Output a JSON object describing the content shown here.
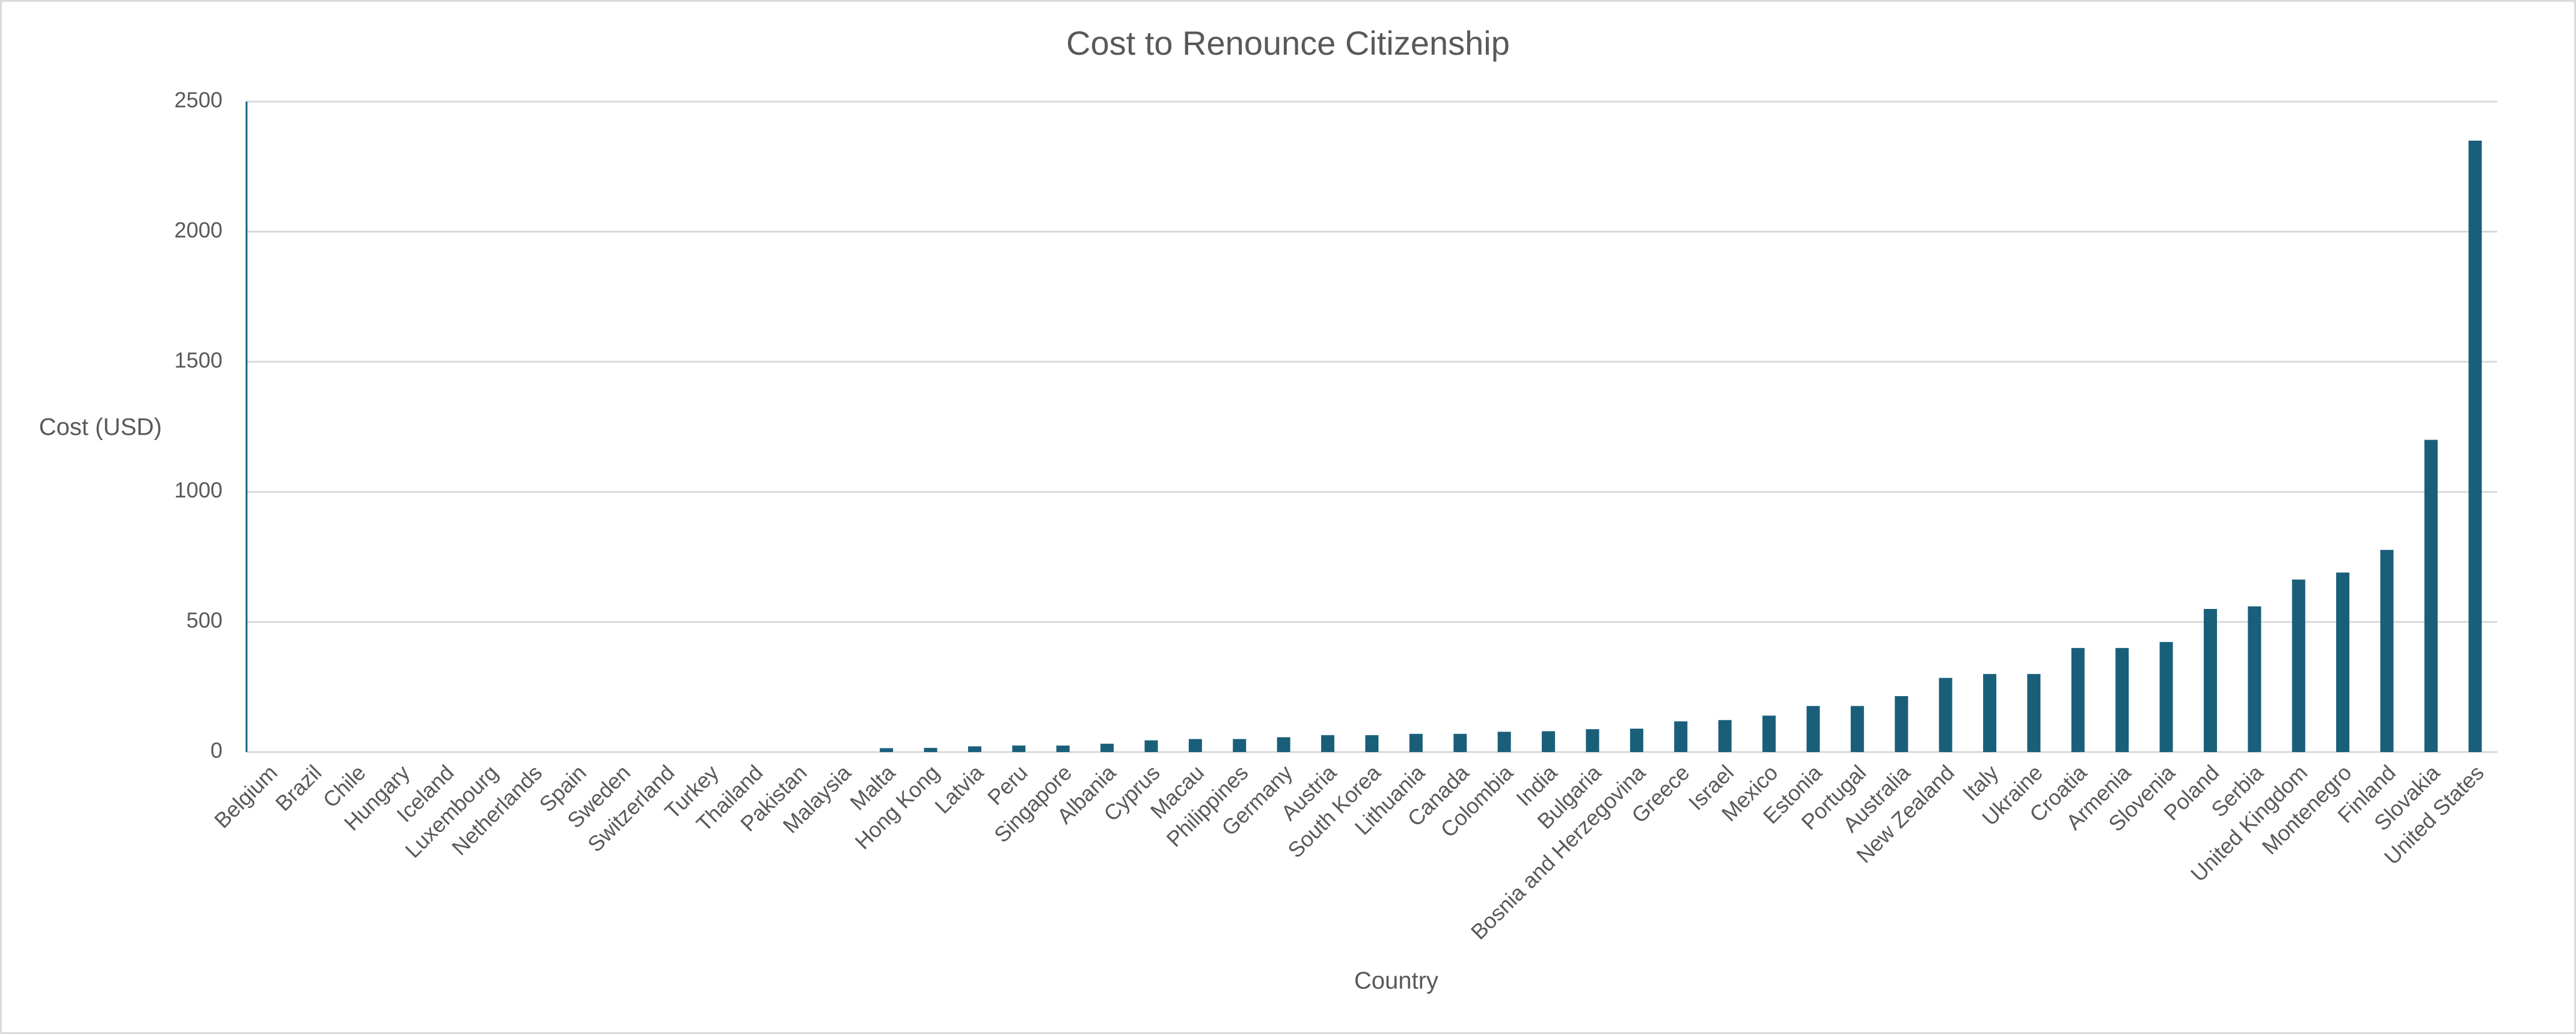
{
  "chart_data": {
    "type": "bar",
    "title": "Cost to Renounce Citizenship",
    "x_label": "Country",
    "y_label": "Cost (USD)",
    "categories": [
      "Belgium",
      "Brazil",
      "Chile",
      "Hungary",
      "Iceland",
      "Luxembourg",
      "Netherlands",
      "Spain",
      "Sweden",
      "Switzerland",
      "Turkey",
      "Thailand",
      "Pakistan",
      "Malaysia",
      "Malta",
      "Hong Kong",
      "Latvia",
      "Peru",
      "Singapore",
      "Albania",
      "Cyprus",
      "Macau",
      "Philippines",
      "Germany",
      "Austria",
      "South Korea",
      "Lithuania",
      "Canada",
      "Colombia",
      "India",
      "Bulgaria",
      "Bosnia and Herzegovina",
      "Greece",
      "Israel",
      "Mexico",
      "Estonia",
      "Portugal",
      "Australia",
      "New Zealand",
      "Italy",
      "Ukraine",
      "Croatia",
      "Armenia",
      "Slovenia",
      "Poland",
      "Serbia",
      "United Kingdom",
      "Montenegro",
      "Finland",
      "Slovakia",
      "United States"
    ],
    "values": [
      0,
      0,
      0,
      0,
      0,
      0,
      0,
      0,
      0,
      0,
      0,
      0,
      0,
      0,
      15,
      16,
      22,
      25,
      25,
      32,
      45,
      50,
      50,
      57,
      65,
      65,
      70,
      70,
      78,
      80,
      88,
      90,
      118,
      123,
      140,
      177,
      177,
      215,
      285,
      300,
      300,
      400,
      400,
      423,
      550,
      560,
      663,
      690,
      777,
      1200,
      2350
    ],
    "color": "#1a5f7a",
    "ylim": [
      0,
      2500
    ],
    "yticks": [
      0,
      500,
      1000,
      1500,
      2000,
      2500
    ],
    "grid": true
  }
}
